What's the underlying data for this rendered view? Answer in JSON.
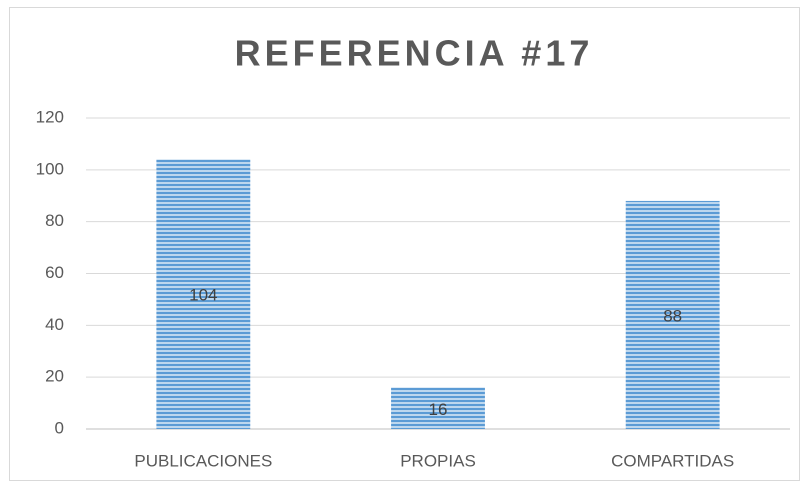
{
  "chart_data": {
    "type": "bar",
    "title": "REFERENCIA #17",
    "categories": [
      "PUBLICACIONES",
      "PROPIAS",
      "COMPARTIDAS"
    ],
    "values": [
      104,
      16,
      88
    ],
    "color": "#5b9bd5",
    "ylim": [
      0,
      120
    ],
    "yticks": [
      0,
      20,
      40,
      60,
      80,
      100,
      120
    ],
    "grid": true
  }
}
